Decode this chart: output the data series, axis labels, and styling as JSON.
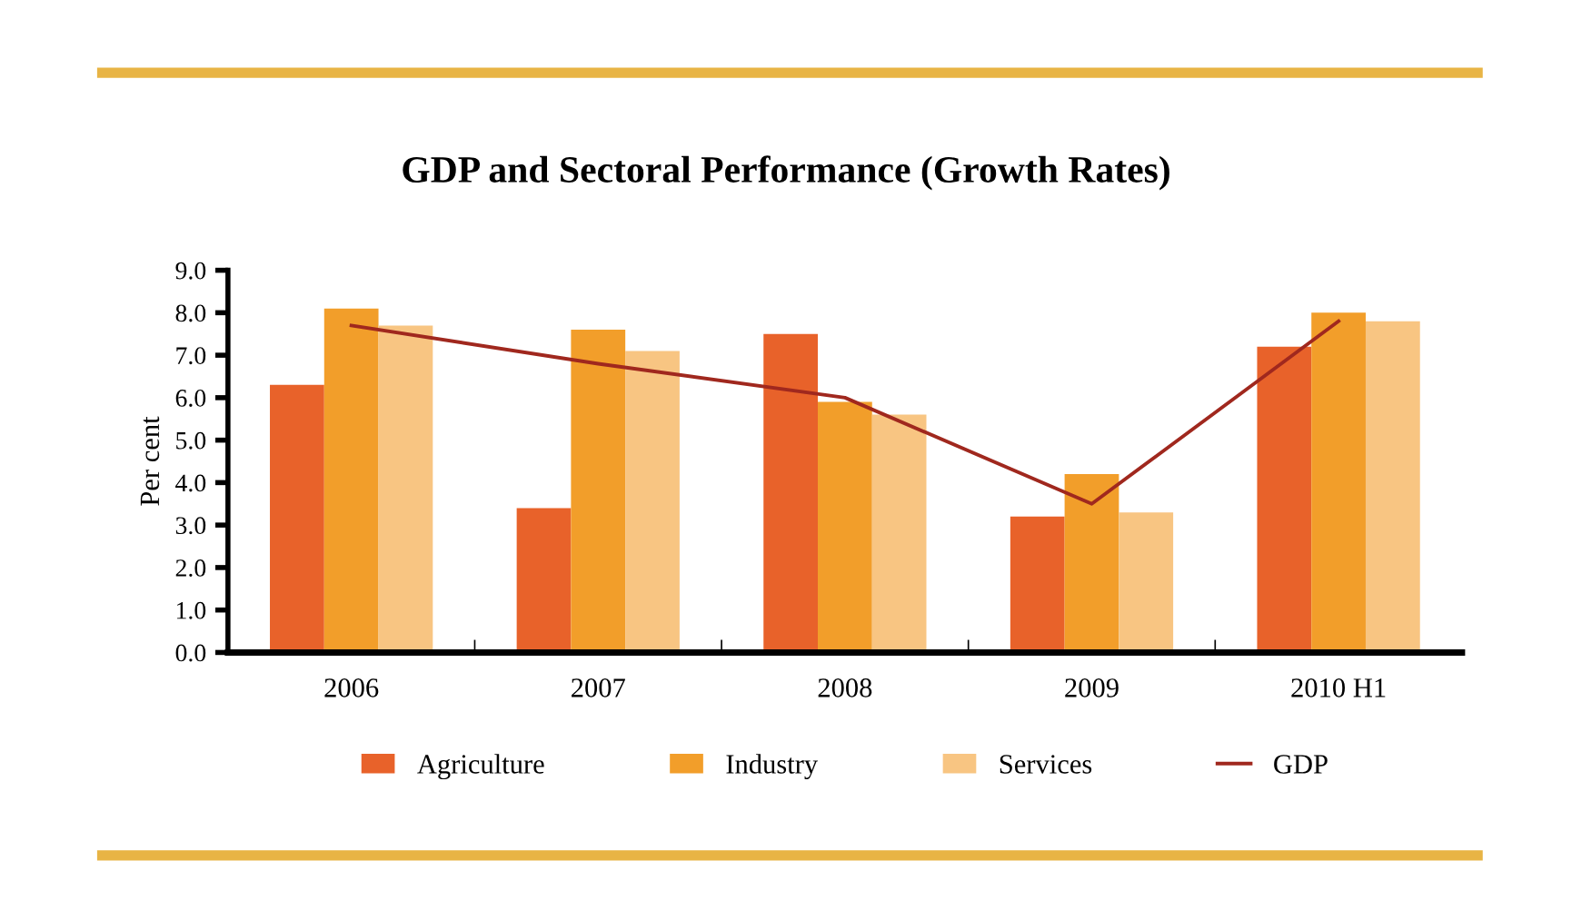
{
  "chart_data": {
    "type": "bar",
    "title": "GDP and Sectoral Performance (Growth Rates)",
    "ylabel": "Per cent",
    "categories": [
      "2006",
      "2007",
      "2008",
      "2009",
      "2010 H1"
    ],
    "series": [
      {
        "name": "Agriculture",
        "color": "#e8622a",
        "values": [
          6.3,
          3.4,
          7.5,
          3.2,
          7.2
        ]
      },
      {
        "name": "Industry",
        "color": "#f29e2a",
        "values": [
          8.1,
          7.6,
          5.9,
          4.2,
          8.0
        ]
      },
      {
        "name": "Services",
        "color": "#f8c582",
        "values": [
          7.7,
          7.1,
          5.6,
          3.3,
          7.8
        ]
      },
      {
        "name": "GDP",
        "type": "line",
        "color": "#a0281e",
        "values": [
          7.7,
          6.8,
          6.0,
          3.5,
          7.8
        ]
      }
    ],
    "ylim": [
      0,
      9
    ],
    "yticks": [
      {
        "value": 0,
        "label": "0.0"
      },
      {
        "value": 1,
        "label": "1.0"
      },
      {
        "value": 2,
        "label": "2.0"
      },
      {
        "value": 3,
        "label": "3.0"
      },
      {
        "value": 4,
        "label": "4.0"
      },
      {
        "value": 5,
        "label": "5.0"
      },
      {
        "value": 6,
        "label": "6.0"
      },
      {
        "value": 7,
        "label": "7.0"
      },
      {
        "value": 8,
        "label": "8.0"
      },
      {
        "value": 9,
        "label": "9.0"
      }
    ],
    "grid": false,
    "legend": "bottom"
  }
}
